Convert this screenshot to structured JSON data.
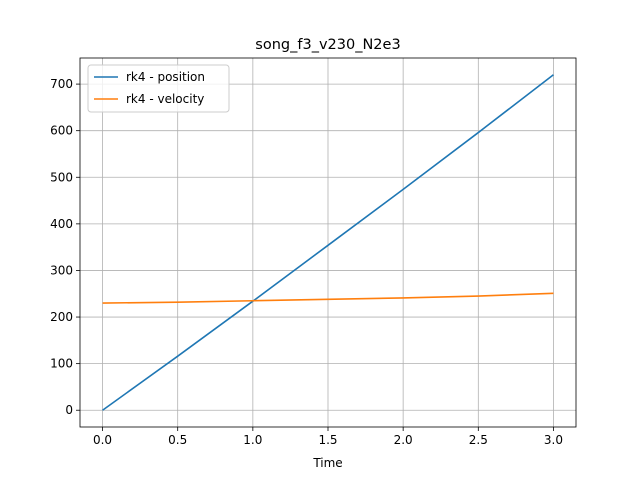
{
  "chart_data": {
    "type": "line",
    "title": "song_f3_v230_N2e3",
    "xlabel": "Time",
    "ylabel": "",
    "xlim": [
      -0.15,
      3.15
    ],
    "ylim": [
      -36,
      756
    ],
    "xticks": [
      0.0,
      0.5,
      1.0,
      1.5,
      2.0,
      2.5,
      3.0
    ],
    "xtick_labels": [
      "0.0",
      "0.5",
      "1.0",
      "1.5",
      "2.0",
      "2.5",
      "3.0"
    ],
    "yticks": [
      0,
      100,
      200,
      300,
      400,
      500,
      600,
      700
    ],
    "ytick_labels": [
      "0",
      "100",
      "200",
      "300",
      "400",
      "500",
      "600",
      "700"
    ],
    "grid": true,
    "legend_position": "top-left",
    "series": [
      {
        "name": "rk4 - position",
        "color": "#1f77b4",
        "x": [
          0.0,
          0.5,
          1.0,
          1.5,
          2.0,
          2.5,
          3.0
        ],
        "y": [
          0,
          116,
          234,
          354,
          474,
          596,
          720
        ]
      },
      {
        "name": "rk4 - velocity",
        "color": "#ff7f0e",
        "x": [
          0.0,
          0.5,
          1.0,
          1.5,
          2.0,
          2.5,
          3.0
        ],
        "y": [
          230,
          232,
          235,
          238,
          241,
          245,
          251
        ]
      }
    ]
  }
}
